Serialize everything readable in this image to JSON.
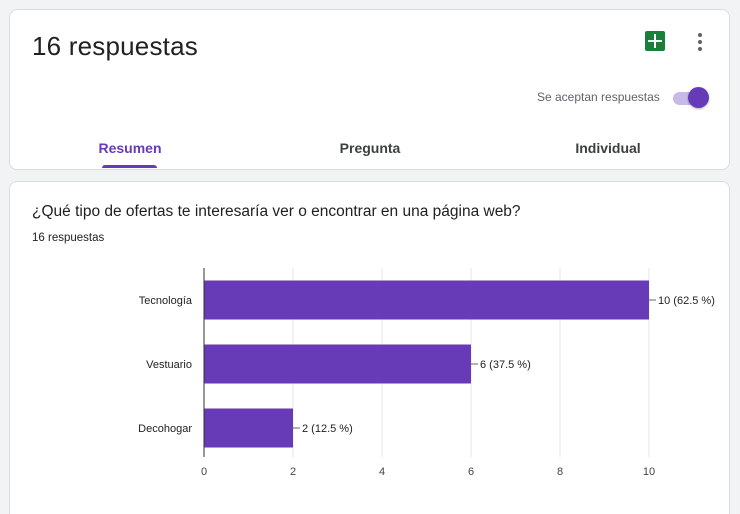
{
  "header": {
    "title": "16 respuestas",
    "sheets_icon": "google-sheets-icon",
    "more_icon": "more-vert-icon",
    "accept_label": "Se aceptan respuestas",
    "accepting": true
  },
  "tabs": [
    {
      "label": "Resumen",
      "active": true
    },
    {
      "label": "Pregunta",
      "active": false
    },
    {
      "label": "Individual",
      "active": false
    }
  ],
  "question": {
    "title": "¿Qué tipo de ofertas te interesaría ver o encontrar en una página web?",
    "count": "16 respuestas"
  },
  "colors": {
    "accent": "#673ab7",
    "bar": "#673ab7"
  },
  "chart_data": {
    "type": "bar",
    "orientation": "horizontal",
    "categories": [
      "Tecnología",
      "Vestuario",
      "Decohogar"
    ],
    "values": [
      10,
      6,
      2
    ],
    "data_labels": [
      "10 (62.5 %)",
      "6 (37.5 %)",
      "2 (12.5 %)"
    ],
    "x_ticks": [
      0,
      2,
      4,
      6,
      8,
      10
    ],
    "xlim": [
      0,
      10
    ],
    "grid": true
  }
}
